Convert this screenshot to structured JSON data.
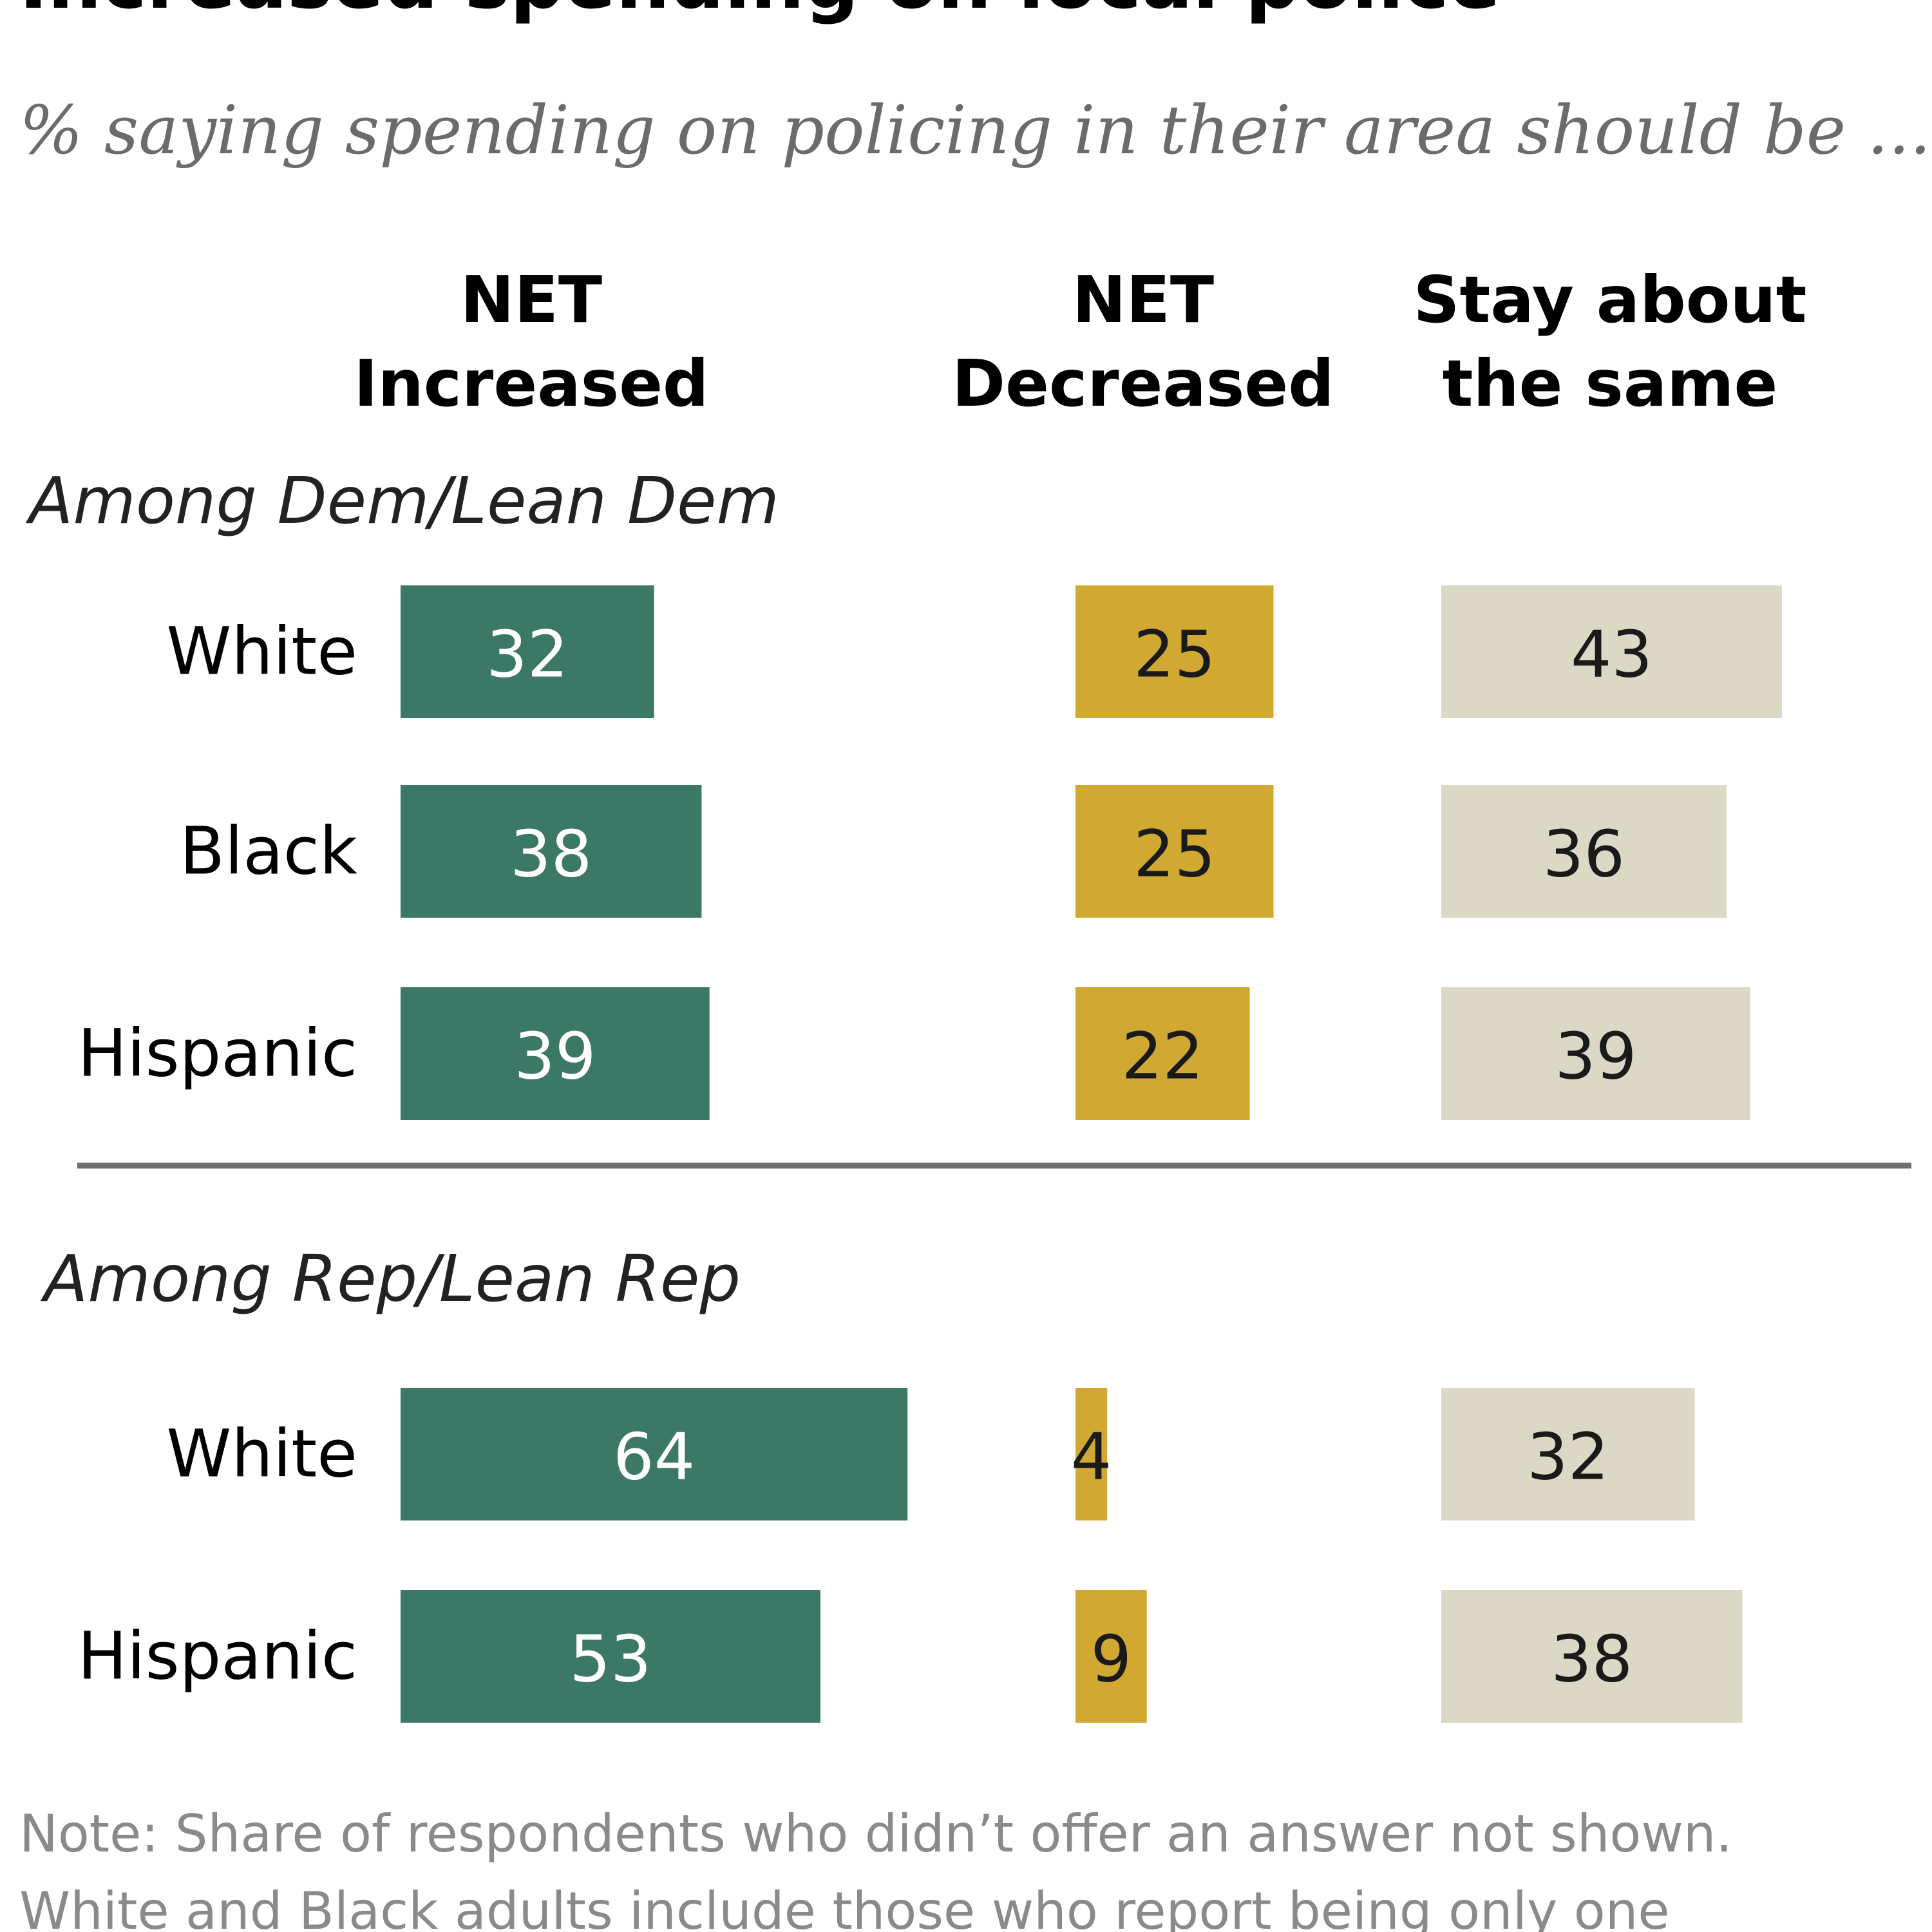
{
  "title": "Increased spending on local police",
  "subtitle": "% saying spending on policing in their area should be ...",
  "headers": {
    "increased": [
      "NET",
      "Increased"
    ],
    "decreased": [
      "NET",
      "Decreased"
    ],
    "same": [
      "Stay about",
      "the same"
    ]
  },
  "note_lines": [
    "Note: Share of respondents who didn’t offer an answer not shown.",
    "White and Black adults include those who report being only one"
  ],
  "colors": {
    "increased": "#3b7866",
    "decreased": "#d1a832",
    "same": "#dcd8c6",
    "increased_text": "#ffffff",
    "dark_text": "#1a1a1a",
    "divider": "#6e6e6e"
  },
  "chart_data": {
    "type": "bar",
    "orientation": "horizontal",
    "title": "Increased spending on local police",
    "subtitle": "% saying spending on policing in their area should be ...",
    "series": [
      {
        "key": "increased",
        "name": "NET Increased"
      },
      {
        "key": "decreased",
        "name": "NET Decreased"
      },
      {
        "key": "same",
        "name": "Stay about the same"
      }
    ],
    "groups": [
      {
        "label": "Among Dem/Lean Dem",
        "rows": [
          {
            "label": "White",
            "increased": 32,
            "decreased": 25,
            "same": 43
          },
          {
            "label": "Black",
            "increased": 38,
            "decreased": 25,
            "same": 36
          },
          {
            "label": "Hispanic",
            "increased": 39,
            "decreased": 22,
            "same": 39
          }
        ]
      },
      {
        "label": "Among Rep/Lean Rep",
        "rows": [
          {
            "label": "White",
            "increased": 64,
            "decreased": 4,
            "same": 32
          },
          {
            "label": "Hispanic",
            "increased": 53,
            "decreased": 9,
            "same": 38
          }
        ]
      }
    ],
    "unit": "%"
  }
}
